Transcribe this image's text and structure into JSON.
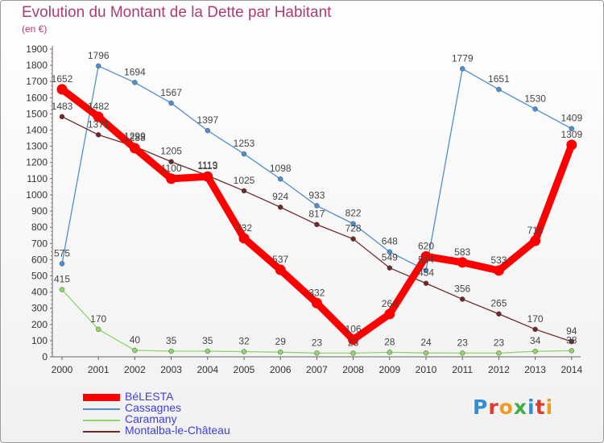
{
  "chart_data": {
    "type": "line",
    "title": "Evolution du Montant de la Dette par Habitant",
    "subtitle": "(en €)",
    "x": [
      "2000",
      "2001",
      "2002",
      "2003",
      "2004",
      "2005",
      "2006",
      "2007",
      "2008",
      "2009",
      "2010",
      "2011",
      "2012",
      "2013",
      "2014"
    ],
    "ylim": [
      0,
      1900
    ],
    "yticks": [
      0,
      100,
      200,
      300,
      400,
      500,
      600,
      700,
      800,
      900,
      1000,
      1100,
      1200,
      1300,
      1400,
      1500,
      1600,
      1700,
      1800,
      1900
    ],
    "grid": false,
    "legend_position": "bottom-left",
    "series": [
      {
        "name": "BéLESTA",
        "color": "#ff0000",
        "highlight": true,
        "values": [
          1652,
          1482,
          1288,
          1100,
          1113,
          732,
          537,
          332,
          106,
          264,
          620,
          583,
          533,
          716,
          1309
        ]
      },
      {
        "name": "Cassagnes",
        "color": "#4f8fcf",
        "highlight": false,
        "values": [
          575,
          1796,
          1694,
          1567,
          1397,
          1253,
          1098,
          933,
          822,
          648,
          534,
          1779,
          1651,
          1530,
          1409
        ]
      },
      {
        "name": "Caramany",
        "color": "#8fd66a",
        "highlight": false,
        "values": [
          415,
          170,
          40,
          35,
          35,
          32,
          29,
          23,
          23,
          28,
          24,
          23,
          23,
          34,
          38
        ]
      },
      {
        "name": "Montalba-le-Château",
        "color": "#6e2a2a",
        "highlight": false,
        "values": [
          1483,
          1371,
          1299,
          1205,
          1119,
          1025,
          924,
          817,
          728,
          549,
          454,
          356,
          265,
          170,
          94
        ]
      }
    ]
  },
  "logo": {
    "text": "Proxiti",
    "letters": [
      {
        "ch": "P",
        "color": "#2e8fd6"
      },
      {
        "ch": "r",
        "color": "#e03a2c"
      },
      {
        "ch": "o",
        "color": "#f29a1e"
      },
      {
        "ch": "x",
        "color": "#3fae48"
      },
      {
        "ch": "i",
        "color": "#2e8fd6"
      },
      {
        "ch": "t",
        "color": "#e03a2c"
      },
      {
        "ch": "i",
        "color": "#f29a1e"
      }
    ]
  }
}
